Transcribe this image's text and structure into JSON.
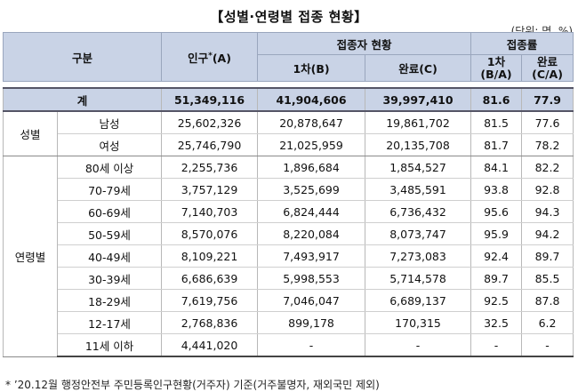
{
  "title": "【성별·연령별 접종 현황】",
  "unit": "(단위: 명, %)",
  "header": {
    "category": "구분",
    "population": "인구",
    "population_mark": "*",
    "population_code": "(A)",
    "vaccinated_status": "접종자 현황",
    "first_dose": "1차(B)",
    "completed": "완료(C)",
    "vaccination_rate": "접종률",
    "first_rate_line1": "1차",
    "first_rate_line2": "(B/A)",
    "completed_rate_line1": "완료",
    "completed_rate_line2": "(C/A)"
  },
  "total": {
    "label": "계",
    "population": "51,349,116",
    "first_dose": "41,904,606",
    "completed": "39,997,410",
    "first_rate": "81.6",
    "completed_rate": "77.9"
  },
  "gender": {
    "group_label": "성별",
    "rows": [
      {
        "label": "남성",
        "population": "25,602,326",
        "first_dose": "20,878,647",
        "completed": "19,861,702",
        "first_rate": "81.5",
        "completed_rate": "77.6"
      },
      {
        "label": "여성",
        "population": "25,746,790",
        "first_dose": "21,025,959",
        "completed": "20,135,708",
        "first_rate": "81.7",
        "completed_rate": "78.2"
      }
    ]
  },
  "age": {
    "group_label": "연령별",
    "rows": [
      {
        "label": "80세 이상",
        "population": "2,255,736",
        "first_dose": "1,896,684",
        "completed": "1,854,527",
        "first_rate": "84.1",
        "completed_rate": "82.2"
      },
      {
        "label": "70-79세",
        "population": "3,757,129",
        "first_dose": "3,525,699",
        "completed": "3,485,591",
        "first_rate": "93.8",
        "completed_rate": "92.8"
      },
      {
        "label": "60-69세",
        "population": "7,140,703",
        "first_dose": "6,824,444",
        "completed": "6,736,432",
        "first_rate": "95.6",
        "completed_rate": "94.3"
      },
      {
        "label": "50-59세",
        "population": "8,570,076",
        "first_dose": "8,220,084",
        "completed": "8,073,747",
        "first_rate": "95.9",
        "completed_rate": "94.2"
      },
      {
        "label": "40-49세",
        "population": "8,109,221",
        "first_dose": "7,493,917",
        "completed": "7,273,083",
        "first_rate": "92.4",
        "completed_rate": "89.7"
      },
      {
        "label": "30-39세",
        "population": "6,686,639",
        "first_dose": "5,998,553",
        "completed": "5,714,578",
        "first_rate": "89.7",
        "completed_rate": "85.5"
      },
      {
        "label": "18-29세",
        "population": "7,619,756",
        "first_dose": "7,046,047",
        "completed": "6,689,137",
        "first_rate": "92.5",
        "completed_rate": "87.8"
      },
      {
        "label": "12-17세",
        "population": "2,768,836",
        "first_dose": "899,178",
        "completed": "170,315",
        "first_rate": "32.5",
        "completed_rate": "6.2"
      },
      {
        "label": "11세 이하",
        "population": "4,441,020",
        "first_dose": "-",
        "completed": "-",
        "first_rate": "-",
        "completed_rate": "-"
      }
    ]
  },
  "footnote": "* ’20.12월 행정안전부 주민등록인구현황(거주자) 기준(거주불명자, 재외국민 제외)"
}
